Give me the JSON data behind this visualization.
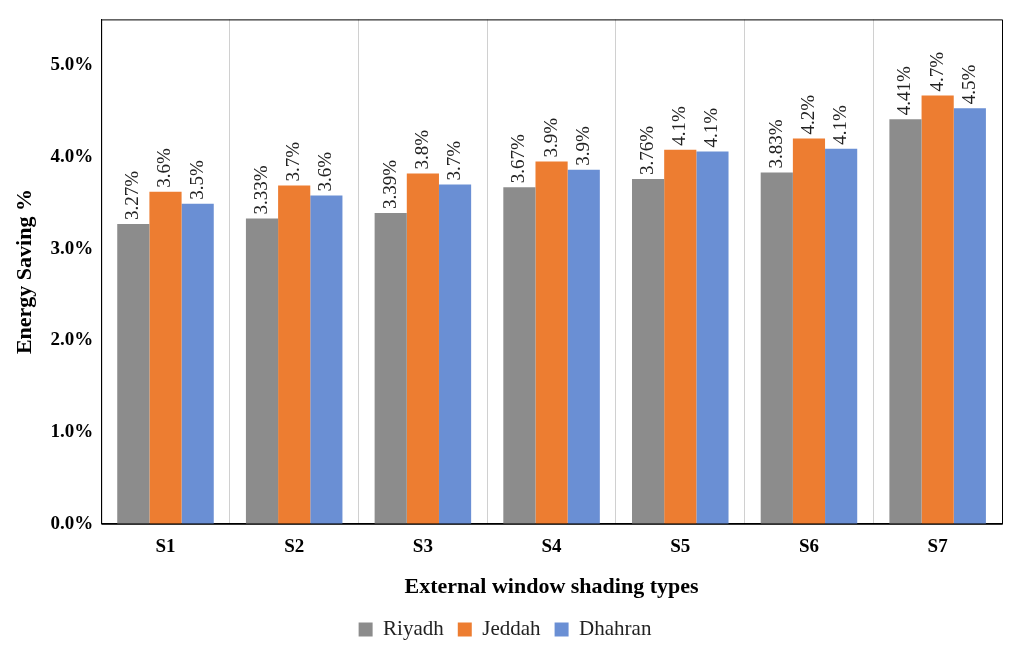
{
  "chart_data": {
    "type": "bar",
    "xlabel": "External window shading types",
    "ylabel": "Energy Saving %",
    "categories": [
      "S1",
      "S2",
      "S3",
      "S4",
      "S5",
      "S6",
      "S7"
    ],
    "series": [
      {
        "name": "Riyadh",
        "color": "#8c8c8c",
        "values": [
          3.27,
          3.33,
          3.39,
          3.67,
          3.76,
          3.83,
          4.41
        ],
        "value_labels": [
          "3.27%",
          "3.33%",
          "3.39%",
          "3.67%",
          "3.76%",
          "3.83%",
          "4.41%"
        ]
      },
      {
        "name": "Jeddah",
        "color": "#ed7d31",
        "values": [
          3.62,
          3.69,
          3.82,
          3.95,
          4.08,
          4.2,
          4.67
        ],
        "value_labels": [
          "3.6%",
          "3.7%",
          "3.8%",
          "3.9%",
          "4.1%",
          "4.2%",
          "4.7%"
        ]
      },
      {
        "name": "Dhahran",
        "color": "#6a8fd4",
        "values": [
          3.49,
          3.58,
          3.7,
          3.86,
          4.06,
          4.09,
          4.53
        ],
        "value_labels": [
          "3.5%",
          "3.6%",
          "3.7%",
          "3.9%",
          "4.1%",
          "4.1%",
          "4.5%"
        ]
      }
    ],
    "ylim": [
      0,
      5.5
    ],
    "yticks": [
      {
        "value": 0,
        "label": "0.0%"
      },
      {
        "value": 1,
        "label": "1.0%"
      },
      {
        "value": 2,
        "label": "2.0%"
      },
      {
        "value": 3,
        "label": "3.0%"
      },
      {
        "value": 4,
        "label": "4.0%"
      },
      {
        "value": 5,
        "label": "5.0%"
      }
    ],
    "grid": "x",
    "legend": "bottom"
  }
}
